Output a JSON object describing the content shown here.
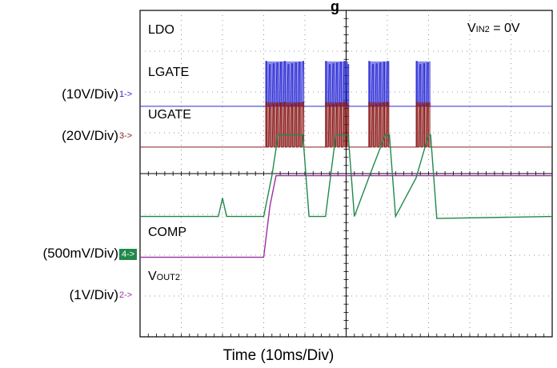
{
  "title_fragment": "g",
  "condition": {
    "prefix": "V",
    "sub": "IN2",
    "suffix": " = 0V"
  },
  "channels": [
    {
      "id": "ch1",
      "marker": "1->",
      "scale": "(10V/Div)",
      "color": "#2b2bd6"
    },
    {
      "id": "ch3",
      "marker": "3->",
      "scale": "(20V/Div)",
      "color": "#8b1a1a"
    },
    {
      "id": "ch4",
      "marker": "4->",
      "scale": "(500mV/Div)",
      "color": "#1f8a4a"
    },
    {
      "id": "ch2",
      "marker": "2->",
      "scale": "(1V/Div)",
      "color": "#9b2fa6"
    }
  ],
  "trace_labels": {
    "ldo": "LDO",
    "lgate": "LGATE",
    "ugate": "UGATE",
    "comp": "COMP",
    "vout_prefix": "V",
    "vout_sub": "OUT2"
  },
  "xlabel": "Time  (10ms/Div)",
  "chart_data": {
    "type": "line",
    "grid": true,
    "x_divisions": 10,
    "y_divisions": 8,
    "x_unit": "div",
    "bursts": [
      {
        "start": 3.05,
        "end": 3.95
      },
      {
        "start": 4.5,
        "end": 5.05
      },
      {
        "start": 5.55,
        "end": 6.05
      },
      {
        "start": 6.7,
        "end": 7.05
      }
    ],
    "series": [
      {
        "name": "LGATE",
        "baseline_div": 5.65,
        "amplitude_div": 1.1
      },
      {
        "name": "UGATE",
        "baseline_div": 4.65,
        "amplitude_div": 1.1
      },
      {
        "name": "COMP",
        "x": [
          0,
          1.9,
          2.0,
          2.1,
          3.0,
          3.2,
          3.35,
          3.95,
          4.1,
          4.5,
          4.75,
          5.05,
          5.2,
          5.55,
          5.95,
          6.05,
          6.2,
          6.7,
          7.0,
          7.05,
          7.2,
          10
        ],
        "y": [
          2.95,
          2.95,
          3.4,
          2.95,
          2.95,
          3.95,
          4.95,
          4.95,
          2.95,
          2.95,
          4.95,
          4.95,
          2.95,
          3.9,
          4.95,
          4.95,
          2.95,
          3.9,
          4.95,
          4.95,
          2.9,
          2.95
        ]
      },
      {
        "name": "VOUT2",
        "x": [
          0,
          3.0,
          3.15,
          3.3,
          10
        ],
        "y": [
          1.95,
          1.95,
          3.2,
          3.95,
          3.95
        ]
      }
    ]
  }
}
